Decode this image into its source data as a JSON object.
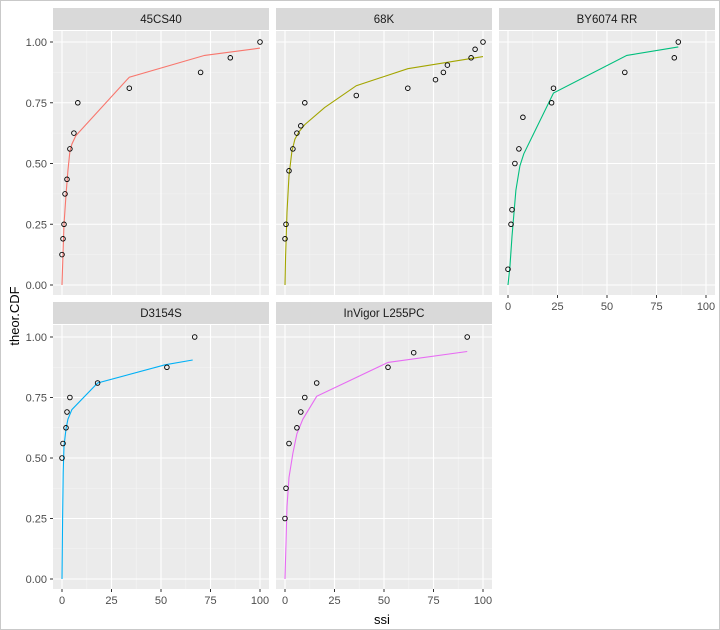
{
  "chart_data": {
    "type": "faceted-line-scatter",
    "xlabel": "ssi",
    "ylabel": "theor.CDF",
    "xlim": [
      0,
      100
    ],
    "ylim": [
      0,
      1
    ],
    "x_ticks": [
      0,
      25,
      50,
      75,
      100
    ],
    "y_ticks": [
      0.0,
      0.25,
      0.5,
      0.75,
      1.0
    ],
    "y_tick_labels": [
      "0.00",
      "0.25",
      "0.50",
      "0.75",
      "1.00"
    ],
    "facets": [
      {
        "name": "45CS40",
        "color": "#F8766D",
        "points": [
          [
            0,
            0.125
          ],
          [
            0.5,
            0.19
          ],
          [
            1,
            0.25
          ],
          [
            1.5,
            0.375
          ],
          [
            2.5,
            0.435
          ],
          [
            4,
            0.56
          ],
          [
            6,
            0.625
          ],
          [
            8,
            0.75
          ],
          [
            34,
            0.81
          ],
          [
            70,
            0.875
          ],
          [
            85,
            0.935
          ],
          [
            100,
            1.0
          ]
        ],
        "curve": [
          [
            0,
            0
          ],
          [
            0.5,
            0.13
          ],
          [
            1,
            0.25
          ],
          [
            2,
            0.37
          ],
          [
            3,
            0.47
          ],
          [
            4,
            0.55
          ],
          [
            5,
            0.58
          ],
          [
            7,
            0.615
          ],
          [
            34,
            0.855
          ],
          [
            72,
            0.945
          ],
          [
            100,
            0.975
          ]
        ]
      },
      {
        "name": "68K",
        "color": "#A3A500",
        "points": [
          [
            0,
            0.19
          ],
          [
            0.5,
            0.25
          ],
          [
            2,
            0.47
          ],
          [
            4,
            0.56
          ],
          [
            6,
            0.625
          ],
          [
            8,
            0.655
          ],
          [
            10,
            0.75
          ],
          [
            36,
            0.78
          ],
          [
            62,
            0.81
          ],
          [
            76,
            0.845
          ],
          [
            80,
            0.875
          ],
          [
            82,
            0.905
          ],
          [
            94,
            0.935
          ],
          [
            96,
            0.97
          ],
          [
            100,
            1.0
          ]
        ],
        "curve": [
          [
            0,
            0
          ],
          [
            0.3,
            0.12
          ],
          [
            1,
            0.3
          ],
          [
            2,
            0.45
          ],
          [
            3.5,
            0.55
          ],
          [
            5,
            0.6
          ],
          [
            7,
            0.63
          ],
          [
            10,
            0.66
          ],
          [
            20,
            0.73
          ],
          [
            36,
            0.82
          ],
          [
            62,
            0.89
          ],
          [
            100,
            0.94
          ]
        ]
      },
      {
        "name": "BY6074 RR",
        "color": "#00BF7D",
        "points": [
          [
            0,
            0.065
          ],
          [
            1.5,
            0.25
          ],
          [
            2,
            0.31
          ],
          [
            3.5,
            0.5
          ],
          [
            5.5,
            0.56
          ],
          [
            7.5,
            0.69
          ],
          [
            22,
            0.75
          ],
          [
            23,
            0.81
          ],
          [
            59,
            0.875
          ],
          [
            84,
            0.935
          ],
          [
            86,
            1.0
          ]
        ],
        "curve": [
          [
            0,
            0
          ],
          [
            1,
            0.08
          ],
          [
            2,
            0.2
          ],
          [
            4,
            0.39
          ],
          [
            6,
            0.49
          ],
          [
            8,
            0.54
          ],
          [
            23,
            0.79
          ],
          [
            60,
            0.945
          ],
          [
            86,
            0.98
          ]
        ]
      },
      {
        "name": "D3154S",
        "color": "#00B0F6",
        "points": [
          [
            0,
            0.5
          ],
          [
            0.5,
            0.56
          ],
          [
            2,
            0.625
          ],
          [
            2.5,
            0.69
          ],
          [
            4,
            0.75
          ],
          [
            18,
            0.81
          ],
          [
            53,
            0.875
          ],
          [
            67,
            1.0
          ]
        ],
        "curve": [
          [
            0,
            0
          ],
          [
            0.3,
            0.25
          ],
          [
            0.6,
            0.44
          ],
          [
            1,
            0.55
          ],
          [
            2,
            0.62
          ],
          [
            3,
            0.66
          ],
          [
            5,
            0.7
          ],
          [
            18,
            0.81
          ],
          [
            52,
            0.885
          ],
          [
            66,
            0.905
          ]
        ]
      },
      {
        "name": "InVigor L255PC",
        "color": "#E76BF3",
        "points": [
          [
            0,
            0.25
          ],
          [
            0.5,
            0.375
          ],
          [
            2,
            0.56
          ],
          [
            6,
            0.625
          ],
          [
            8,
            0.69
          ],
          [
            10,
            0.75
          ],
          [
            16,
            0.81
          ],
          [
            52,
            0.875
          ],
          [
            65,
            0.935
          ],
          [
            92,
            1.0
          ]
        ],
        "curve": [
          [
            0,
            0
          ],
          [
            0.5,
            0.15
          ],
          [
            1,
            0.3
          ],
          [
            2,
            0.42
          ],
          [
            4,
            0.52
          ],
          [
            6,
            0.6
          ],
          [
            9,
            0.66
          ],
          [
            16,
            0.755
          ],
          [
            52,
            0.895
          ],
          [
            92,
            0.94
          ]
        ]
      }
    ]
  }
}
